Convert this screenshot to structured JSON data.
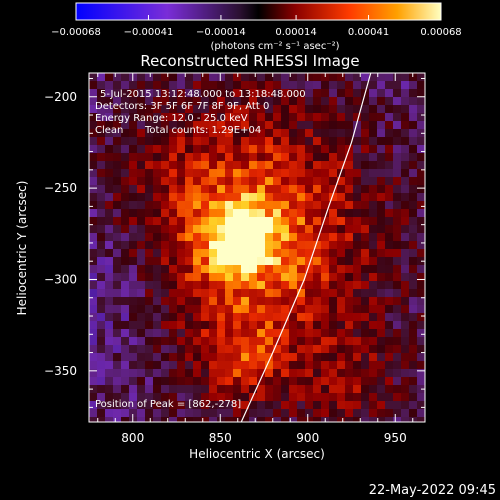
{
  "chart_data": {
    "type": "heatmap",
    "title": "Reconstructed RHESSI Image",
    "xlabel": "Heliocentric X (arcsec)",
    "ylabel": "Heliocentric Y (arcsec)",
    "x_range": [
      775,
      967
    ],
    "y_range": [
      -378,
      -187
    ],
    "x_ticks": [
      800,
      850,
      900,
      950
    ],
    "y_ticks": [
      -200,
      -250,
      -300,
      -350
    ],
    "colorbar": {
      "min": -0.00068,
      "max": 0.00068,
      "tick_values": [
        -0.00068,
        -0.00041,
        -0.00014,
        0.00014,
        0.00041,
        0.00068
      ],
      "tick_labels": [
        "-0.00068",
        "-0.00041",
        "-0.00014",
        "0.00014",
        "0.00041",
        "0.00068"
      ],
      "unit_label": "(photons cm⁻² s⁻¹ asec⁻²)"
    },
    "annotations": {
      "time_range": "5-Jul-2015 13:12:48.000 to 13:18:48.000",
      "detectors": "Detectors: 3F 5F 6F 7F 8F 9F, Att 0",
      "energy_range": "Energy Range: 12.0 - 25.0 keV",
      "clean_label": "Clean",
      "total_counts": "Total counts: 1.29E+04",
      "peak_position": "Position of Peak = [862,-278]"
    },
    "peak": {
      "x": 862,
      "y": -278
    },
    "limb_curve": [
      [
        862,
        -378
      ],
      [
        880,
        -340
      ],
      [
        898,
        -300
      ],
      [
        912,
        -260
      ],
      [
        925,
        -225
      ],
      [
        936,
        -187
      ]
    ]
  },
  "footer": {
    "timestamp": "22-May-2022 09:45"
  }
}
